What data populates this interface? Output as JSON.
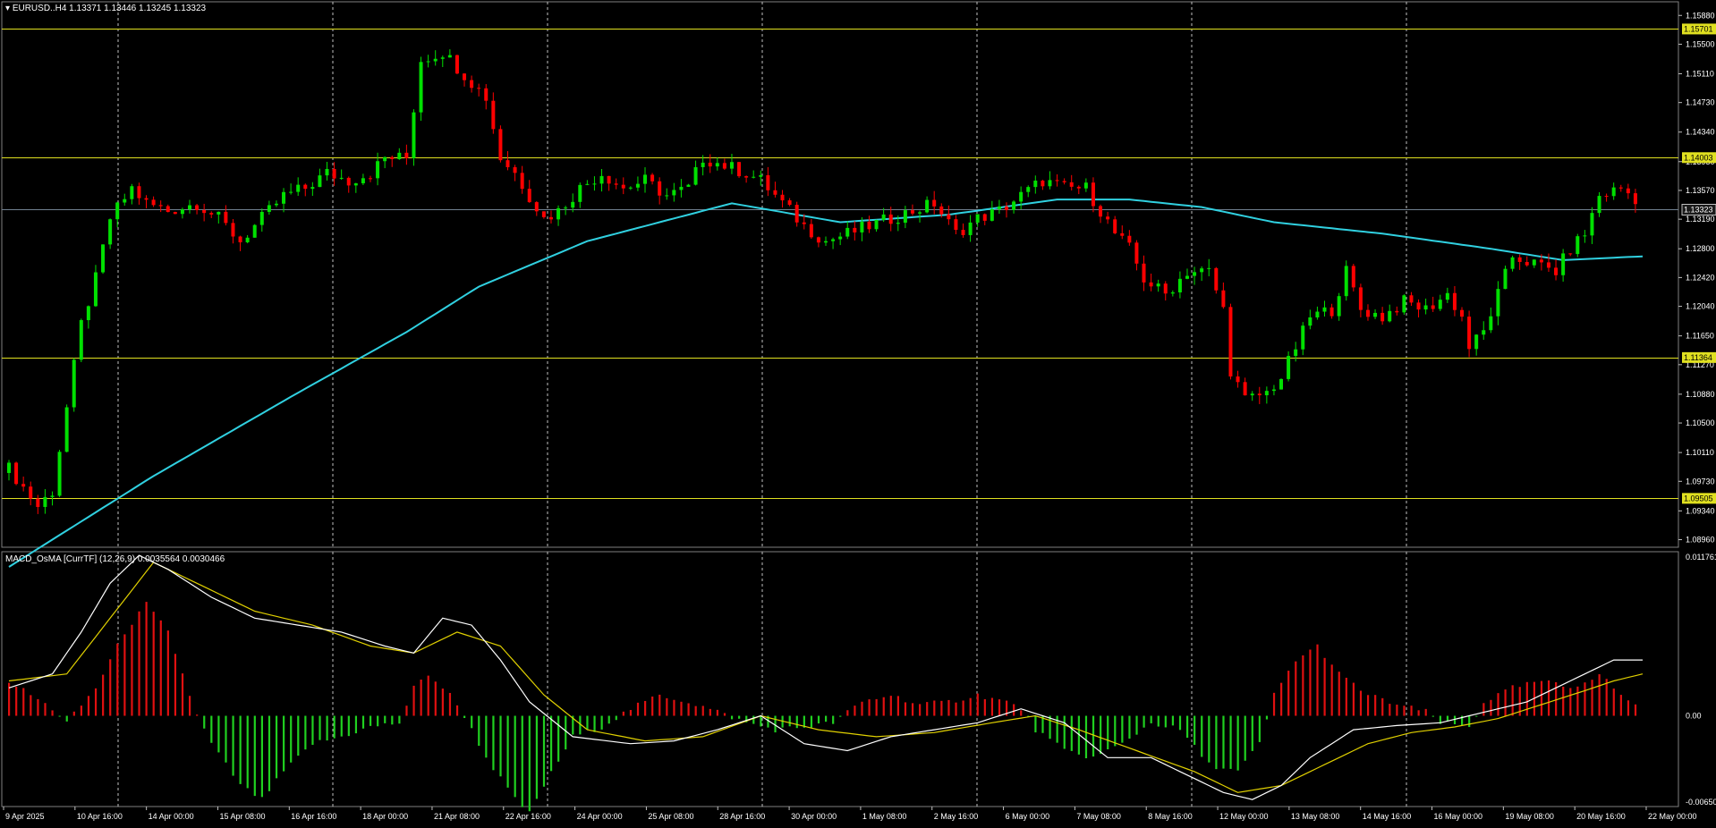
{
  "symbol": "EURUSD..H4",
  "ohlc": "1.13371 1.13446 1.13245 1.13323",
  "indicator": {
    "name": "MACD_OsMA [CurrTF] (12,26,9)",
    "value1": "0.0035564",
    "value2": "0.0030466",
    "scale_labels": [
      "0.0117613",
      "0.00",
      "-0.006503"
    ]
  },
  "colors": {
    "background": "#000000",
    "grid": "#c0c0c0",
    "bull_candle": "#00e000",
    "bear_candle": "#ff0000",
    "ma_line": "#30d0e0",
    "level_line": "#e0e020",
    "hist_positive": "#e01010",
    "hist_negative": "#20d020",
    "macd_line": "#ffffff",
    "signal_line": "#e0d000",
    "price_line": "#708090"
  },
  "chart_data": [
    {
      "type": "candlestick",
      "title": "EURUSD..H4",
      "price_axis_labels": [
        "1.15880",
        "1.15500",
        "1.15110",
        "1.14730",
        "1.14340",
        "1.13950",
        "1.13570",
        "1.13190",
        "1.12800",
        "1.12420",
        "1.12040",
        "1.11650",
        "1.11270",
        "1.10880",
        "1.10500",
        "1.10110",
        "1.09730",
        "1.09340",
        "1.08960"
      ],
      "time_axis_labels": [
        "9 Apr 2025",
        "10 Apr 16:00",
        "14 Apr 00:00",
        "15 Apr 08:00",
        "16 Apr 16:00",
        "18 Apr 00:00",
        "21 Apr 08:00",
        "22 Apr 16:00",
        "24 Apr 00:00",
        "25 Apr 08:00",
        "28 Apr 16:00",
        "30 Apr 00:00",
        "1 May 08:00",
        "2 May 16:00",
        "6 May 00:00",
        "7 May 08:00",
        "8 May 16:00",
        "12 May 00:00",
        "13 May 08:00",
        "14 May 16:00",
        "16 May 00:00",
        "19 May 08:00",
        "20 May 16:00",
        "22 May 00:00"
      ],
      "ylim": [
        1.0886,
        1.1606
      ],
      "horizontal_levels": [
        {
          "value": 1.15701,
          "label": "1.15701"
        },
        {
          "value": 1.14003,
          "label": "1.14003"
        },
        {
          "value": 1.11364,
          "label": "1.11364"
        },
        {
          "value": 1.09505,
          "label": "1.09505"
        }
      ],
      "current_price": {
        "value": 1.13323,
        "label": "1.13323"
      },
      "close_path": [
        [
          0,
          1.099
        ],
        [
          4,
          1.094
        ],
        [
          6,
          1.096
        ],
        [
          8,
          1.107
        ],
        [
          10,
          1.118
        ],
        [
          12,
          1.124
        ],
        [
          14,
          1.132
        ],
        [
          17,
          1.136
        ],
        [
          19,
          1.134
        ],
        [
          22,
          1.133
        ],
        [
          26,
          1.134
        ],
        [
          29,
          1.132
        ],
        [
          32,
          1.129
        ],
        [
          35,
          1.132
        ],
        [
          38,
          1.135
        ],
        [
          41,
          1.136
        ],
        [
          44,
          1.138
        ],
        [
          47,
          1.137
        ],
        [
          50,
          1.138
        ],
        [
          52,
          1.14
        ],
        [
          55,
          1.14
        ],
        [
          57,
          1.153
        ],
        [
          60,
          1.154
        ],
        [
          63,
          1.151
        ],
        [
          66,
          1.148
        ],
        [
          68,
          1.14
        ],
        [
          70,
          1.138
        ],
        [
          72,
          1.135
        ],
        [
          74,
          1.132
        ],
        [
          76,
          1.133
        ],
        [
          79,
          1.136
        ],
        [
          82,
          1.138
        ],
        [
          85,
          1.136
        ],
        [
          88,
          1.137
        ],
        [
          91,
          1.135
        ],
        [
          94,
          1.136
        ],
        [
          96,
          1.14
        ],
        [
          99,
          1.139
        ],
        [
          102,
          1.138
        ],
        [
          104,
          1.137
        ],
        [
          107,
          1.134
        ],
        [
          110,
          1.131
        ],
        [
          113,
          1.129
        ],
        [
          116,
          1.13
        ],
        [
          119,
          1.131
        ],
        [
          122,
          1.132
        ],
        [
          125,
          1.133
        ],
        [
          128,
          1.134
        ],
        [
          131,
          1.13
        ],
        [
          134,
          1.132
        ],
        [
          137,
          1.133
        ],
        [
          140,
          1.135
        ],
        [
          143,
          1.137
        ],
        [
          146,
          1.136
        ],
        [
          149,
          1.136
        ],
        [
          151,
          1.133
        ],
        [
          153,
          1.13
        ],
        [
          155,
          1.128
        ],
        [
          157,
          1.124
        ],
        [
          160,
          1.122
        ],
        [
          163,
          1.125
        ],
        [
          166,
          1.125
        ],
        [
          168,
          1.12
        ],
        [
          169,
          1.112
        ],
        [
          171,
          1.108
        ],
        [
          174,
          1.109
        ],
        [
          176,
          1.111
        ],
        [
          178,
          1.115
        ],
        [
          180,
          1.119
        ],
        [
          183,
          1.12
        ],
        [
          185,
          1.125
        ],
        [
          187,
          1.12
        ],
        [
          190,
          1.119
        ],
        [
          193,
          1.121
        ],
        [
          196,
          1.12
        ],
        [
          199,
          1.122
        ],
        [
          201,
          1.119
        ],
        [
          202,
          1.115
        ],
        [
          204,
          1.117
        ],
        [
          206,
          1.122
        ],
        [
          208,
          1.127
        ],
        [
          211,
          1.126
        ],
        [
          214,
          1.125
        ],
        [
          216,
          1.128
        ],
        [
          218,
          1.13
        ],
        [
          220,
          1.135
        ],
        [
          223,
          1.136
        ],
        [
          226,
          1.134
        ]
      ],
      "ma_path": [
        [
          0,
          1.086
        ],
        [
          20,
          1.098
        ],
        [
          40,
          1.109
        ],
        [
          55,
          1.117
        ],
        [
          65,
          1.123
        ],
        [
          80,
          1.129
        ],
        [
          100,
          1.134
        ],
        [
          115,
          1.1315
        ],
        [
          130,
          1.1325
        ],
        [
          145,
          1.1345
        ],
        [
          155,
          1.1345
        ],
        [
          165,
          1.1335
        ],
        [
          175,
          1.1315
        ],
        [
          190,
          1.13
        ],
        [
          205,
          1.128
        ],
        [
          215,
          1.1265
        ],
        [
          226,
          1.127
        ]
      ],
      "bar_count": 226
    },
    {
      "type": "histogram+line",
      "title": "MACD_OsMA [CurrTF] (12,26,9)",
      "ylim": [
        -0.006503,
        0.0117613
      ],
      "histogram_path": [
        [
          0,
          0.0025
        ],
        [
          6,
          0.0005
        ],
        [
          8,
          -0.0005
        ],
        [
          12,
          0.002
        ],
        [
          16,
          0.006
        ],
        [
          19,
          0.008
        ],
        [
          22,
          0.006
        ],
        [
          24,
          0.003
        ],
        [
          26,
          0.0
        ],
        [
          28,
          -0.002
        ],
        [
          32,
          -0.005
        ],
        [
          35,
          -0.006
        ],
        [
          38,
          -0.004
        ],
        [
          42,
          -0.002
        ],
        [
          46,
          -0.0015
        ],
        [
          50,
          -0.0008
        ],
        [
          54,
          -0.0005
        ],
        [
          56,
          0.002
        ],
        [
          58,
          0.003
        ],
        [
          61,
          0.0015
        ],
        [
          63,
          0.0
        ],
        [
          66,
          -0.003
        ],
        [
          70,
          -0.006
        ],
        [
          72,
          -0.007
        ],
        [
          74,
          -0.005
        ],
        [
          78,
          -0.0015
        ],
        [
          82,
          -0.0008
        ],
        [
          86,
          0.0005
        ],
        [
          90,
          0.0015
        ],
        [
          94,
          0.001
        ],
        [
          98,
          0.0003
        ],
        [
          102,
          -0.0005
        ],
        [
          106,
          -0.001
        ],
        [
          110,
          -0.0008
        ],
        [
          114,
          -0.0005
        ],
        [
          118,
          0.001
        ],
        [
          122,
          0.0015
        ],
        [
          126,
          0.0008
        ],
        [
          130,
          0.001
        ],
        [
          134,
          0.0015
        ],
        [
          138,
          0.001
        ],
        [
          140,
          0.0005
        ],
        [
          142,
          -0.001
        ],
        [
          146,
          -0.0025
        ],
        [
          150,
          -0.003
        ],
        [
          154,
          -0.002
        ],
        [
          158,
          -0.0005
        ],
        [
          162,
          -0.001
        ],
        [
          166,
          -0.0035
        ],
        [
          170,
          -0.004
        ],
        [
          173,
          -0.002
        ],
        [
          175,
          0.0015
        ],
        [
          178,
          0.004
        ],
        [
          181,
          0.005
        ],
        [
          184,
          0.003
        ],
        [
          188,
          0.0015
        ],
        [
          192,
          0.0008
        ],
        [
          196,
          0.0003
        ],
        [
          198,
          -0.0005
        ],
        [
          202,
          -0.0008
        ],
        [
          204,
          0.001
        ],
        [
          208,
          0.002
        ],
        [
          212,
          0.0025
        ],
        [
          216,
          0.002
        ],
        [
          220,
          0.003
        ],
        [
          224,
          0.001
        ],
        [
          226,
          0.0008
        ]
      ],
      "macd_path": [
        [
          0,
          0.002
        ],
        [
          6,
          0.003
        ],
        [
          10,
          0.006
        ],
        [
          14,
          0.0095
        ],
        [
          18,
          0.0115
        ],
        [
          22,
          0.0105
        ],
        [
          28,
          0.0085
        ],
        [
          34,
          0.007
        ],
        [
          40,
          0.0065
        ],
        [
          46,
          0.006
        ],
        [
          52,
          0.005
        ],
        [
          56,
          0.0045
        ],
        [
          60,
          0.007
        ],
        [
          64,
          0.0065
        ],
        [
          68,
          0.004
        ],
        [
          72,
          0.001
        ],
        [
          78,
          -0.0015
        ],
        [
          86,
          -0.002
        ],
        [
          92,
          -0.0018
        ],
        [
          98,
          -0.001
        ],
        [
          104,
          0.0
        ],
        [
          110,
          -0.002
        ],
        [
          116,
          -0.0025
        ],
        [
          122,
          -0.0015
        ],
        [
          128,
          -0.001
        ],
        [
          134,
          -0.0005
        ],
        [
          140,
          0.0005
        ],
        [
          146,
          -0.0005
        ],
        [
          152,
          -0.003
        ],
        [
          158,
          -0.003
        ],
        [
          164,
          -0.0045
        ],
        [
          168,
          -0.0055
        ],
        [
          172,
          -0.006
        ],
        [
          176,
          -0.005
        ],
        [
          180,
          -0.003
        ],
        [
          186,
          -0.001
        ],
        [
          192,
          -0.0007
        ],
        [
          198,
          -0.0005
        ],
        [
          202,
          0.0
        ],
        [
          206,
          0.0005
        ],
        [
          210,
          0.001
        ],
        [
          214,
          0.002
        ],
        [
          218,
          0.003
        ],
        [
          222,
          0.004
        ],
        [
          226,
          0.004
        ]
      ],
      "signal_path": [
        [
          0,
          0.0025
        ],
        [
          8,
          0.003
        ],
        [
          14,
          0.007
        ],
        [
          20,
          0.011
        ],
        [
          26,
          0.0095
        ],
        [
          34,
          0.0075
        ],
        [
          42,
          0.0065
        ],
        [
          50,
          0.005
        ],
        [
          56,
          0.0045
        ],
        [
          62,
          0.006
        ],
        [
          68,
          0.005
        ],
        [
          74,
          0.0015
        ],
        [
          80,
          -0.001
        ],
        [
          88,
          -0.0018
        ],
        [
          96,
          -0.0015
        ],
        [
          104,
          0.0
        ],
        [
          112,
          -0.001
        ],
        [
          120,
          -0.0015
        ],
        [
          128,
          -0.0012
        ],
        [
          136,
          -0.0005
        ],
        [
          142,
          0.0
        ],
        [
          148,
          -0.001
        ],
        [
          156,
          -0.0025
        ],
        [
          164,
          -0.004
        ],
        [
          170,
          -0.0055
        ],
        [
          176,
          -0.005
        ],
        [
          182,
          -0.0035
        ],
        [
          188,
          -0.002
        ],
        [
          194,
          -0.0012
        ],
        [
          200,
          -0.0008
        ],
        [
          206,
          -0.0002
        ],
        [
          212,
          0.0008
        ],
        [
          218,
          0.0018
        ],
        [
          222,
          0.0025
        ],
        [
          226,
          0.003
        ]
      ]
    }
  ]
}
